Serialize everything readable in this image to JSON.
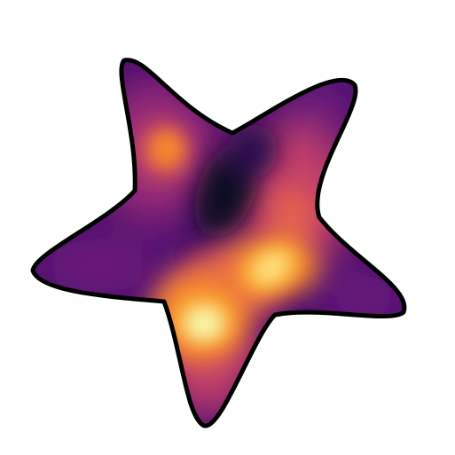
{
  "figure": {
    "background": "#ffffff",
    "outline_color": "#000000",
    "colormap": "inferno-like",
    "palette": [
      "#0b0720",
      "#2a0b4d",
      "#4b0e6e",
      "#6f1a7c",
      "#9a2a78",
      "#c4406a",
      "#e3604d",
      "#f5862d",
      "#fbb236",
      "#fde07a",
      "#f7f4a5"
    ]
  }
}
